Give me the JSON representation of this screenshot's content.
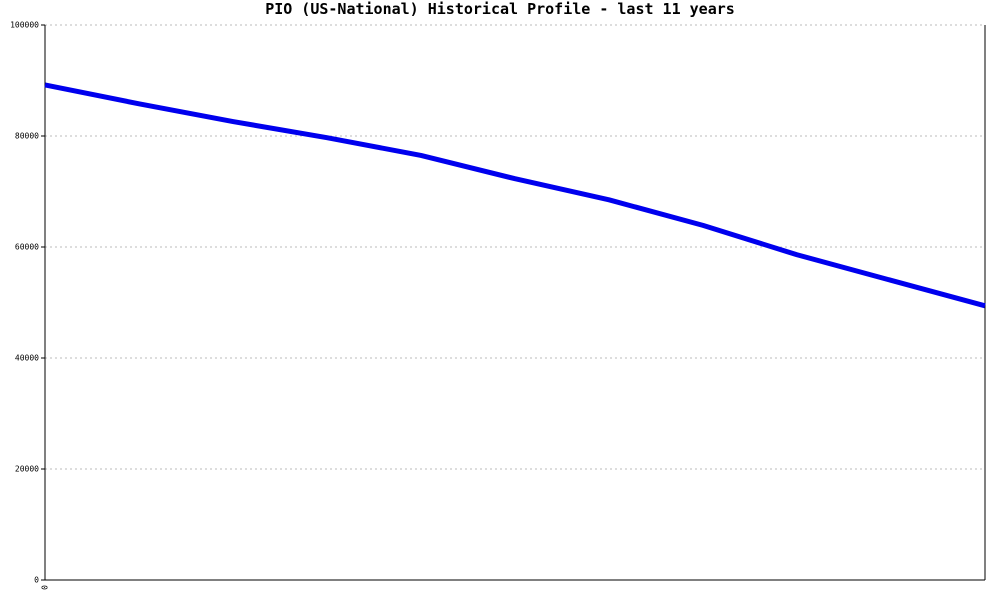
{
  "chart_data": {
    "type": "line",
    "title": "PIO (US-National) Historical Profile - last 11 years",
    "categories": [
      "0",
      null,
      null,
      null,
      null,
      null,
      null,
      null,
      null,
      null,
      null
    ],
    "series": [
      {
        "name": "PIO",
        "color": "#0000ee",
        "values": [
          89200,
          85800,
          82600,
          79700,
          76500,
          72300,
          68500,
          63900,
          58600,
          54000,
          49400
        ]
      }
    ],
    "ylim": [
      0,
      100000
    ],
    "yticks": [
      0,
      20000,
      40000,
      60000,
      80000,
      100000
    ],
    "grid": true
  }
}
